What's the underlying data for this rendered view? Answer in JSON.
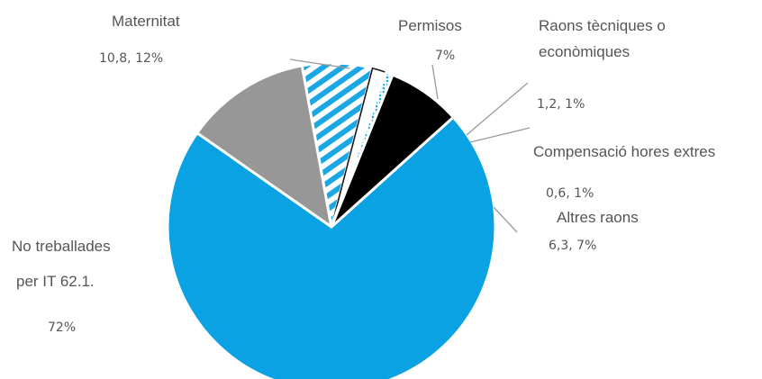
{
  "chart_data": {
    "type": "pie",
    "title": "",
    "start_angle_deg": 48,
    "slices": [
      {
        "name": "No treballades per IT",
        "value": 62.1,
        "pct": "72%",
        "color": "#0aa2e3",
        "pattern": "solid"
      },
      {
        "name": "Maternitat",
        "value": 10.8,
        "pct": "12%",
        "color": "#979797",
        "pattern": "solid"
      },
      {
        "name": "Permisos",
        "value": 6.0,
        "pct": "7%",
        "color": "#1aa7e4",
        "pattern": "stripes"
      },
      {
        "name": "Raons tècniques o econòmiques",
        "value": 1.2,
        "pct": "1%",
        "color": "#1a1a1a",
        "pattern": "outline"
      },
      {
        "name": "Compensació hores extres",
        "value": 0.6,
        "pct": "1%",
        "color": "#1aa7e4",
        "pattern": "dots"
      },
      {
        "name": "Altres raons",
        "value": 6.3,
        "pct": "7%",
        "color": "#000000",
        "pattern": "solid"
      }
    ],
    "labels": {
      "maternitat_name": "Maternitat",
      "maternitat_val": "10,8, 12%",
      "permisos_name": "Permisos",
      "permisos_val": "7%",
      "raons_name_1": "Raons tècniques o",
      "raons_name_2": "econòmiques",
      "raons_val": "1,2, 1%",
      "comp_name": "Compensació hores extres",
      "comp_val": "0,6, 1%",
      "altres_name": "Altres raons",
      "altres_val": "6,3, 7%",
      "it_name_1": "No treballades",
      "it_name_2": "per IT 62.1.",
      "it_val": "72%"
    }
  }
}
